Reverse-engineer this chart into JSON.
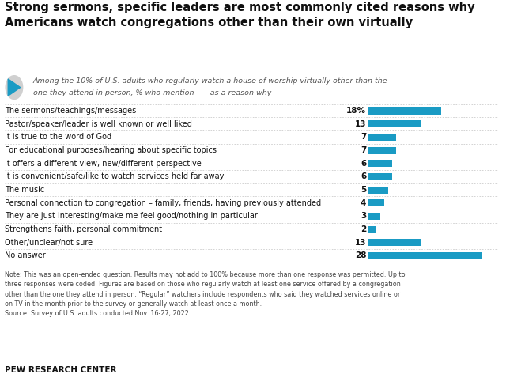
{
  "title": "Strong sermons, specific leaders are most commonly cited reasons why\nAmericans watch congregations other than their own virtually",
  "subtitle_line1": "Among the 10% of U.S. adults who regularly watch a house of worship virtually other than the",
  "subtitle_line2": "one they attend in person, % who mention ___ as a reason why",
  "categories": [
    "The sermons/teachings/messages",
    "Pastor/speaker/leader is well known or well liked",
    "It is true to the word of God",
    "For educational purposes/hearing about specific topics",
    "It offers a different view, new/different perspective",
    "It is convenient/safe/like to watch services held far away",
    "The music",
    "Personal connection to congregation – family, friends, having previously attended",
    "They are just interesting/make me feel good/nothing in particular",
    "Strengthens faith, personal commitment",
    "Other/unclear/not sure",
    "No answer"
  ],
  "values": [
    18,
    13,
    7,
    7,
    6,
    6,
    5,
    4,
    3,
    2,
    13,
    28
  ],
  "bar_color": "#1a9bc4",
  "value_labels": [
    "18%",
    "13",
    "7",
    "7",
    "6",
    "6",
    "5",
    "4",
    "3",
    "2",
    "13",
    "28"
  ],
  "note_line1": "Note: This was an open-ended question. Results may not add to 100% because more than one response was permitted. Up to",
  "note_line2": "three responses were coded. Figures are based on those who regularly watch at least one service offered by a congregation",
  "note_line3": "other than the one they attend in person. “Regular” watchers include respondents who said they watched services online or",
  "note_line4": "on TV in the month prior to the survey or generally watch at least once a month.",
  "note_line5": "Source: Survey of U.S. adults conducted Nov. 16-27, 2022.",
  "footer": "PEW RESEARCH CENTER",
  "bar_xlim_max": 32,
  "background_color": "#ffffff",
  "title_fontsize": 10.5,
  "label_fontsize": 7.0,
  "value_fontsize": 7.5,
  "note_fontsize": 5.8,
  "footer_fontsize": 7.5,
  "subtitle_fontsize": 6.8
}
